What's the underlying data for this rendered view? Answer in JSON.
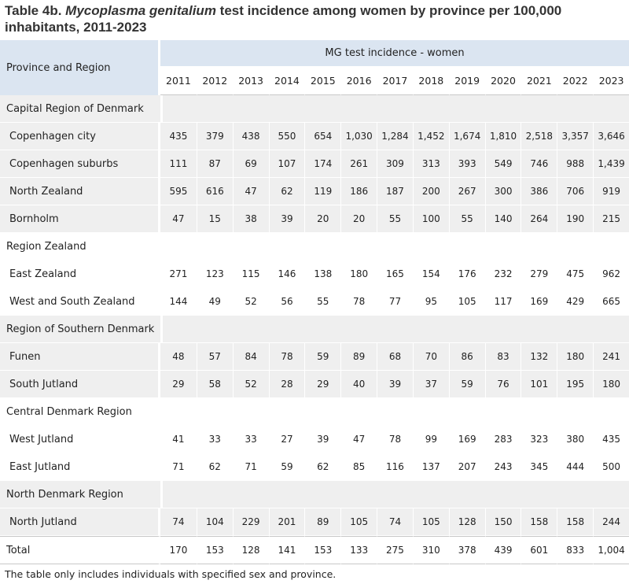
{
  "title": {
    "prefix": "Table 4b. ",
    "species": "Mycoplasma genitalium",
    "suffix": "  test incidence among women by province per 100,000 inhabitants, 2011-2023"
  },
  "header": {
    "province_label": "Province and Region",
    "group_label": "MG test incidence - women",
    "years": [
      "2011",
      "2012",
      "2013",
      "2014",
      "2015",
      "2016",
      "2017",
      "2018",
      "2019",
      "2020",
      "2021",
      "2022",
      "2023"
    ]
  },
  "rows": [
    {
      "type": "region",
      "shade": true,
      "label": "Capital Region of Denmark"
    },
    {
      "type": "province",
      "shade": true,
      "label": "Copenhagen city",
      "values": [
        "435",
        "379",
        "438",
        "550",
        "654",
        "1,030",
        "1,284",
        "1,452",
        "1,674",
        "1,810",
        "2,518",
        "3,357",
        "3,646"
      ]
    },
    {
      "type": "province",
      "shade": true,
      "label": "Copenhagen suburbs",
      "values": [
        "111",
        "87",
        "69",
        "107",
        "174",
        "261",
        "309",
        "313",
        "393",
        "549",
        "746",
        "988",
        "1,439"
      ]
    },
    {
      "type": "province",
      "shade": true,
      "label": "North Zealand",
      "values": [
        "595",
        "616",
        "47",
        "62",
        "119",
        "186",
        "187",
        "200",
        "267",
        "300",
        "386",
        "706",
        "919"
      ]
    },
    {
      "type": "province",
      "shade": true,
      "label": "Bornholm",
      "values": [
        "47",
        "15",
        "38",
        "39",
        "20",
        "20",
        "55",
        "100",
        "55",
        "140",
        "264",
        "190",
        "215"
      ]
    },
    {
      "type": "region",
      "shade": false,
      "label": "Region Zealand"
    },
    {
      "type": "province",
      "shade": false,
      "label": "East Zealand",
      "values": [
        "271",
        "123",
        "115",
        "146",
        "138",
        "180",
        "165",
        "154",
        "176",
        "232",
        "279",
        "475",
        "962"
      ]
    },
    {
      "type": "province",
      "shade": false,
      "label": "West and South Zealand",
      "values": [
        "144",
        "49",
        "52",
        "56",
        "55",
        "78",
        "77",
        "95",
        "105",
        "117",
        "169",
        "429",
        "665"
      ]
    },
    {
      "type": "region",
      "shade": true,
      "label": "Region of Southern Denmark"
    },
    {
      "type": "province",
      "shade": true,
      "label": "Funen",
      "values": [
        "48",
        "57",
        "84",
        "78",
        "59",
        "89",
        "68",
        "70",
        "86",
        "83",
        "132",
        "180",
        "241"
      ]
    },
    {
      "type": "province",
      "shade": true,
      "label": "South Jutland",
      "values": [
        "29",
        "58",
        "52",
        "28",
        "29",
        "40",
        "39",
        "37",
        "59",
        "76",
        "101",
        "195",
        "180"
      ]
    },
    {
      "type": "region",
      "shade": false,
      "label": "Central Denmark Region"
    },
    {
      "type": "province",
      "shade": false,
      "label": "West Jutland",
      "values": [
        "41",
        "33",
        "33",
        "27",
        "39",
        "47",
        "78",
        "99",
        "169",
        "283",
        "323",
        "380",
        "435"
      ]
    },
    {
      "type": "province",
      "shade": false,
      "label": "East Jutland",
      "values": [
        "71",
        "62",
        "71",
        "59",
        "62",
        "85",
        "116",
        "137",
        "207",
        "243",
        "345",
        "444",
        "500"
      ]
    },
    {
      "type": "region",
      "shade": true,
      "label": "North Denmark Region"
    },
    {
      "type": "province",
      "shade": true,
      "label": "North Jutland",
      "values": [
        "74",
        "104",
        "229",
        "201",
        "89",
        "105",
        "74",
        "105",
        "128",
        "150",
        "158",
        "158",
        "244"
      ]
    },
    {
      "type": "total",
      "shade": false,
      "label": "Total",
      "values": [
        "170",
        "153",
        "128",
        "141",
        "153",
        "133",
        "275",
        "310",
        "378",
        "439",
        "601",
        "833",
        "1,004"
      ]
    }
  ],
  "footnote": "The table only includes individuals with specified sex and province."
}
